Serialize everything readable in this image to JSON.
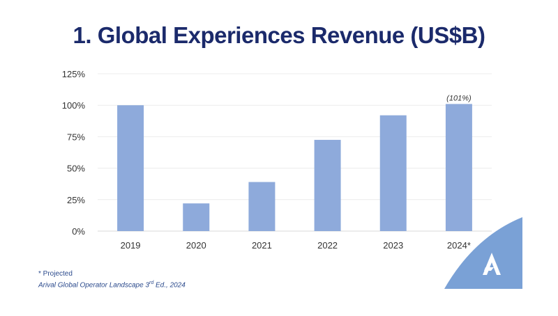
{
  "chart_data": {
    "type": "bar",
    "title": "1. Global Experiences Revenue (US$B)",
    "categories": [
      "2019",
      "2020",
      "2021",
      "2022",
      "2023",
      "2024*"
    ],
    "values": [
      100,
      22,
      39,
      72.5,
      92,
      101
    ],
    "data_labels": {
      "2024*": "(101%)"
    },
    "ylim": [
      0,
      125
    ],
    "yticks": [
      "0%",
      "25%",
      "50%",
      "75%",
      "100%",
      "125%"
    ],
    "ytick_values": [
      0,
      25,
      50,
      75,
      100,
      125
    ],
    "grid": true,
    "bar_color": "#8eaadb"
  },
  "footnote": {
    "projected": "* Projected",
    "source_pre": "Arival Global Operator Landscape 3",
    "source_sup": "rd",
    "source_post": " Ed., 2024"
  },
  "logo": {
    "color": "#7aa1d6",
    "icon": "arival-logo-icon"
  },
  "colors": {
    "title": "#1b2a6b",
    "footnote": "#2b4a8c"
  }
}
